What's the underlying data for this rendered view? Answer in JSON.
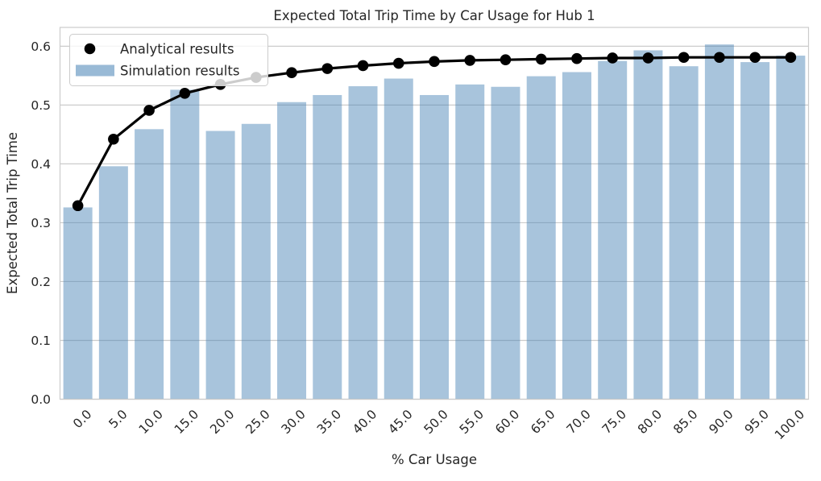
{
  "chart_data": {
    "type": "bar",
    "title": "Expected Total Trip Time by Car Usage for Hub 1",
    "xlabel": "% Car Usage",
    "ylabel": "Expected Total Trip Time",
    "categories": [
      "0.0",
      "5.0",
      "10.0",
      "15.0",
      "20.0",
      "25.0",
      "30.0",
      "35.0",
      "40.0",
      "45.0",
      "50.0",
      "55.0",
      "60.0",
      "65.0",
      "70.0",
      "75.0",
      "80.0",
      "85.0",
      "90.0",
      "95.0",
      "100.0"
    ],
    "series": [
      {
        "name": "Analytical results",
        "type": "line",
        "marker": "circle",
        "color": "#000000",
        "values": [
          0.329,
          0.442,
          0.491,
          0.52,
          0.535,
          0.547,
          0.555,
          0.562,
          0.567,
          0.571,
          0.574,
          0.576,
          0.577,
          0.578,
          0.579,
          0.58,
          0.58,
          0.581,
          0.581,
          0.581,
          0.581
        ]
      },
      {
        "name": "Simulation results",
        "type": "bar",
        "color": "#4682b4",
        "fill_opacity": 0.47,
        "values": [
          0.326,
          0.396,
          0.459,
          0.526,
          0.456,
          0.468,
          0.505,
          0.517,
          0.532,
          0.545,
          0.517,
          0.535,
          0.531,
          0.549,
          0.556,
          0.575,
          0.593,
          0.566,
          0.603,
          0.573,
          0.584
        ]
      }
    ],
    "y_ticks": [
      "0.0",
      "0.1",
      "0.2",
      "0.3",
      "0.4",
      "0.5",
      "0.6"
    ],
    "ylim": [
      0,
      0.632
    ],
    "grid": true,
    "legend_position": "upper left",
    "colors": {
      "grid": "#cccccc",
      "spine": "#cccccc",
      "text": "#262626",
      "background": "#ffffff",
      "legend_face": "rgba(255,255,255,0.8)"
    }
  }
}
